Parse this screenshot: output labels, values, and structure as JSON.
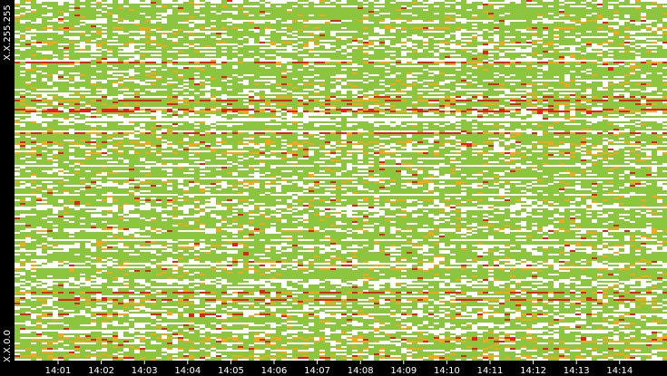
{
  "chart_data": {
    "type": "heatmap",
    "title": "",
    "xlabel": "",
    "ylabel": "",
    "x_ticks": [
      "14:01",
      "14:02",
      "14:03",
      "14:04",
      "14:05",
      "14:06",
      "14:07",
      "14:08",
      "14:09",
      "14:10",
      "14:11",
      "14:12",
      "14:13",
      "14:14"
    ],
    "y_ticks": [
      "X.X.255.255",
      "X.X.0.0"
    ],
    "xlim": [
      "14:00",
      "14:15"
    ],
    "color_scale": {
      "background": "#ffffff",
      "low": "#8cc63f",
      "medium": "#f2a81d",
      "high": "#e2231a"
    },
    "legend": "none",
    "grid": false
  }
}
